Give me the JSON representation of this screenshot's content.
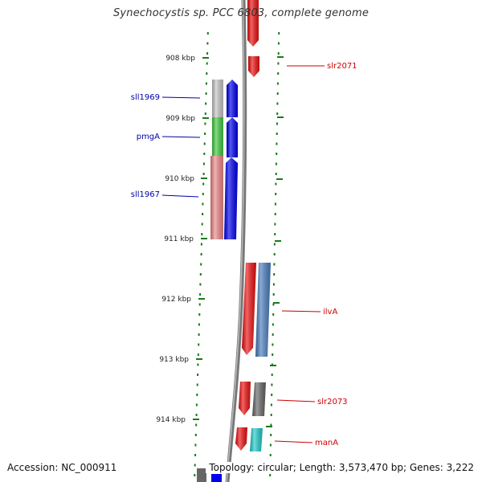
{
  "title": "Synechocystis sp. PCC 6803, complete genome",
  "footer": {
    "accession": "Accession: NC_000911",
    "topology": "Topology: circular; Length: 3,573,470 bp; Genes: 3,222"
  },
  "colors": {
    "forward_label": "#cc0000",
    "reverse_label": "#0000aa",
    "tick": "#1a7a1a",
    "backbone": "#888888"
  },
  "ticks": [
    "908 kbp",
    "909 kbp",
    "910 kbp",
    "911 kbp",
    "912 kbp",
    "913 kbp",
    "914 kbp"
  ],
  "genes": [
    {
      "name": "sll1969",
      "strand": "reverse",
      "feature_color": "#c8c8c8",
      "cds_color": "#0000ee"
    },
    {
      "name": "pmgA",
      "strand": "reverse",
      "feature_color": "#44cc44",
      "cds_color": "#0000ee"
    },
    {
      "name": "sll1967",
      "strand": "reverse",
      "feature_color": "#f08a8a",
      "cds_color": "#0000ee"
    },
    {
      "name": "slr2071",
      "strand": "forward",
      "feature_color": "#ee1111",
      "cds_color": "#ee1111"
    },
    {
      "name": "ilvA",
      "strand": "forward",
      "feature_color": "#ee1111",
      "cds_color": "#4a7fbf"
    },
    {
      "name": "slr2073",
      "strand": "forward",
      "feature_color": "#ee1111",
      "cds_color": "#666666"
    },
    {
      "name": "manA",
      "strand": "forward",
      "feature_color": "#ee1111",
      "cds_color": "#22cccc"
    }
  ]
}
